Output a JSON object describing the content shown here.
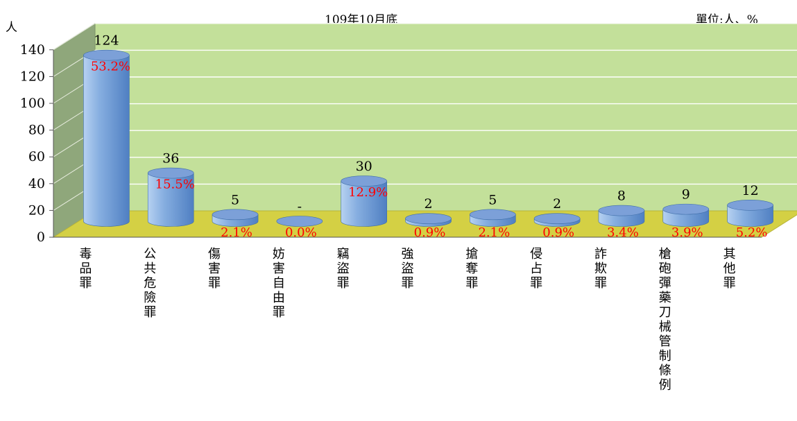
{
  "chart_data": {
    "type": "bar",
    "title": "109年10月底",
    "unit_label": "單位:人、%",
    "ylabel": "人",
    "ylim": [
      0,
      140
    ],
    "yticks": [
      0,
      20,
      40,
      60,
      80,
      100,
      120,
      140
    ],
    "grid": true,
    "categories": [
      "毒品罪",
      "公共危險罪",
      "傷害罪",
      "妨害自由罪",
      "竊盜罪",
      "強盜罪",
      "搶奪罪",
      "侵占罪",
      "詐欺罪",
      "槍砲彈藥刀械管制條例",
      "其他罪"
    ],
    "values": [
      124,
      36,
      5,
      0,
      30,
      2,
      5,
      2,
      8,
      9,
      12
    ],
    "value_labels": [
      "124",
      "36",
      "5",
      "-",
      "30",
      "2",
      "5",
      "2",
      "8",
      "9",
      "12"
    ],
    "percent_labels": [
      "53.2%",
      "15.5%",
      "2.1%",
      "0.0%",
      "12.9%",
      "0.9%",
      "2.1%",
      "0.9%",
      "3.4%",
      "3.9%",
      "5.2%"
    ],
    "colors": {
      "wall": "#c3e09a",
      "side_wall": "#8fa77b",
      "floor": "#d4d044",
      "bar_light": "#b6d1f1",
      "bar_mid": "#86aee0",
      "bar_dark": "#4f7fc2",
      "bar_top": "#7ca0d8",
      "percent_text": "#ff0000"
    }
  }
}
